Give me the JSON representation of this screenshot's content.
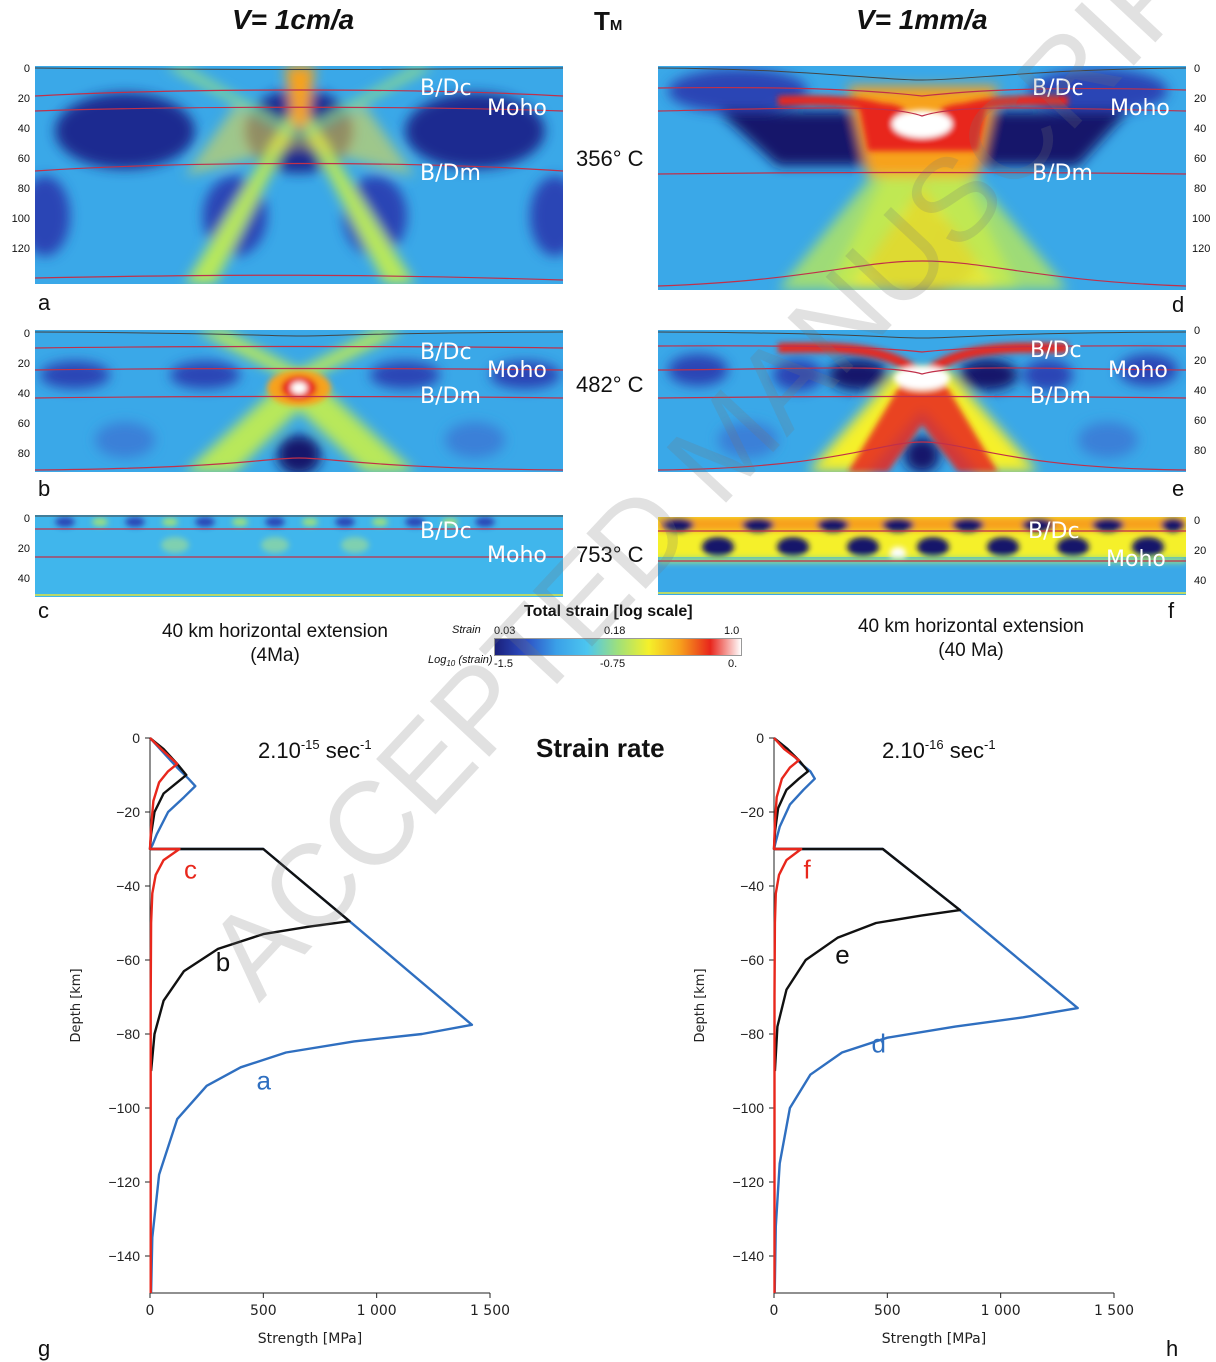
{
  "header": {
    "left_title": "V= 1cm/a",
    "center_title": "T",
    "center_sub": "M",
    "right_title": "V= 1mm/a"
  },
  "temperatures": [
    "356° C",
    "482° C",
    "753° C"
  ],
  "panel_letters": [
    "a",
    "b",
    "c",
    "d",
    "e",
    "f",
    "g",
    "h"
  ],
  "labels": {
    "bdc": "B/Dc",
    "moho": "Moho",
    "bdm": "B/Dm"
  },
  "left_yticks_a": [
    "0",
    "20",
    "40",
    "60",
    "80",
    "100",
    "120"
  ],
  "left_yticks_b": [
    "0",
    "20",
    "40",
    "60",
    "80"
  ],
  "left_yticks_c": [
    "0",
    "20",
    "40"
  ],
  "right_yticks_d": [
    "0",
    "20",
    "40",
    "60",
    "80",
    "100",
    "120"
  ],
  "right_yticks_e": [
    "0",
    "20",
    "40",
    "60",
    "80"
  ],
  "right_yticks_f": [
    "0",
    "20",
    "40"
  ],
  "extension_left": {
    "line1": "40 km horizontal extension",
    "line2": "(4Ma)"
  },
  "extension_right": {
    "line1": "40 km horizontal extension",
    "line2": "(40 Ma)"
  },
  "colorbar": {
    "title": "Total strain [log scale]",
    "row1_label": "Strain",
    "row1_values": [
      "0.03",
      "0.18",
      "1.0"
    ],
    "row2_label": "Log",
    "row2_sub": "10",
    "row2_suffix": " (strain)",
    "row2_values": [
      "-1.5",
      "-0.75",
      "0."
    ],
    "colors": [
      "#1a1f7a",
      "#2d4fc4",
      "#3aa0e8",
      "#4cc6f0",
      "#9fe07a",
      "#f5f02a",
      "#f7a21c",
      "#e8261c",
      "#ffffff"
    ]
  },
  "strain_rate_title": "Strain rate",
  "watermark": "ACCEPTED MANUSCRIPT",
  "chart_data": [
    {
      "type": "line",
      "panel": "g",
      "annotation": "2.10-15 sec-1",
      "ann_base": "2.10",
      "ann_exp1": "-15",
      "ann_unit": " sec",
      "ann_exp2": "-1",
      "xlabel": "Strength [MPa]",
      "ylabel": "Depth [km]",
      "xlim": [
        0,
        1500
      ],
      "ylim": [
        -150,
        0
      ],
      "xticks": [
        "0",
        "500",
        "1 000",
        "1 500"
      ],
      "xtick_values": [
        0,
        500,
        1000,
        1500
      ],
      "yticks": [
        "0",
        "−20",
        "−40",
        "−60",
        "−80",
        "−100",
        "−120",
        "−140"
      ],
      "ytick_values": [
        0,
        -20,
        -40,
        -60,
        -80,
        -100,
        -120,
        -140
      ],
      "series": [
        {
          "name": "a",
          "color": "#2f6fc0",
          "x": [
            0,
            60,
            120,
            170,
            200,
            150,
            80,
            30,
            10,
            0,
            0,
            500,
            880,
            1420,
            1200,
            900,
            600,
            400,
            250,
            120,
            40,
            10,
            5
          ],
          "y": [
            0,
            -4,
            -8,
            -11,
            -13,
            -16,
            -20,
            -26,
            -29,
            -30,
            -30,
            -30,
            -49.5,
            -77.5,
            -80,
            -82,
            -85,
            -89,
            -94,
            -103,
            -118,
            -135,
            -150
          ]
        },
        {
          "name": "b",
          "color": "#111111",
          "x": [
            0,
            60,
            120,
            160,
            120,
            60,
            20,
            5,
            0,
            0,
            500,
            880,
            700,
            500,
            300,
            150,
            60,
            20,
            5
          ],
          "y": [
            0,
            -3,
            -7,
            -10,
            -12,
            -15,
            -20,
            -26,
            -30,
            -30,
            -30,
            -49.5,
            -51,
            -53,
            -57,
            -63,
            -71,
            -80,
            -90
          ]
        },
        {
          "name": "c",
          "color": "#e8271c",
          "x": [
            0,
            50,
            120,
            80,
            40,
            15,
            5,
            0,
            0,
            130,
            60,
            25,
            10,
            5,
            3,
            3
          ],
          "y": [
            0,
            -3,
            -7,
            -9,
            -12,
            -17,
            -24,
            -30,
            -30,
            -30,
            -33,
            -37,
            -42,
            -50,
            -70,
            -150
          ]
        }
      ],
      "curve_labels": [
        {
          "text": "c",
          "x": 150,
          "y": -38,
          "color": "#e8271c"
        },
        {
          "text": "b",
          "x": 290,
          "y": -63,
          "color": "#111111"
        },
        {
          "text": "a",
          "x": 470,
          "y": -95,
          "color": "#2f6fc0"
        }
      ]
    },
    {
      "type": "line",
      "panel": "h",
      "annotation": "2.10-16 sec-1",
      "ann_base": "2.10",
      "ann_exp1": "-16",
      "ann_unit": " sec",
      "ann_exp2": "-1",
      "xlabel": "Strength [MPa]",
      "ylabel": "Depth [km]",
      "xlim": [
        0,
        1500
      ],
      "ylim": [
        -150,
        0
      ],
      "xticks": [
        "0",
        "500",
        "1 000",
        "1 500"
      ],
      "xtick_values": [
        0,
        500,
        1000,
        1500
      ],
      "yticks": [
        "0",
        "−20",
        "−40",
        "−60",
        "−80",
        "−100",
        "−120",
        "−140"
      ],
      "ytick_values": [
        0,
        -20,
        -40,
        -60,
        -80,
        -100,
        -120,
        -140
      ],
      "series": [
        {
          "name": "d",
          "color": "#2f6fc0",
          "x": [
            0,
            60,
            120,
            160,
            180,
            130,
            70,
            25,
            8,
            0,
            0,
            480,
            820,
            1340,
            1100,
            800,
            500,
            300,
            160,
            70,
            25,
            8,
            3
          ],
          "y": [
            0,
            -3,
            -7,
            -9,
            -11,
            -14,
            -18,
            -24,
            -28,
            -30,
            -30,
            -30,
            -46.5,
            -73,
            -75.5,
            -78,
            -81,
            -85,
            -91,
            -100,
            -115,
            -132,
            -150
          ]
        },
        {
          "name": "e",
          "color": "#111111",
          "x": [
            0,
            60,
            110,
            150,
            110,
            55,
            18,
            5,
            0,
            0,
            480,
            820,
            650,
            450,
            280,
            140,
            55,
            15,
            4
          ],
          "y": [
            0,
            -3,
            -6,
            -9,
            -11,
            -14,
            -19,
            -25,
            -30,
            -30,
            -30,
            -46.5,
            -48,
            -50,
            -54,
            -60,
            -68,
            -78,
            -90
          ]
        },
        {
          "name": "f",
          "color": "#e8271c",
          "x": [
            0,
            45,
            110,
            70,
            35,
            12,
            4,
            0,
            0,
            120,
            55,
            22,
            8,
            4,
            2,
            2
          ],
          "y": [
            0,
            -3,
            -6,
            -8,
            -11,
            -16,
            -23,
            -30,
            -30,
            -30,
            -33,
            -37,
            -42,
            -50,
            -70,
            -150
          ]
        }
      ],
      "curve_labels": [
        {
          "text": "f",
          "x": 130,
          "y": -38,
          "color": "#e8271c"
        },
        {
          "text": "e",
          "x": 270,
          "y": -61,
          "color": "#111111"
        },
        {
          "text": "d",
          "x": 430,
          "y": -85,
          "color": "#2f6fc0"
        }
      ]
    }
  ]
}
